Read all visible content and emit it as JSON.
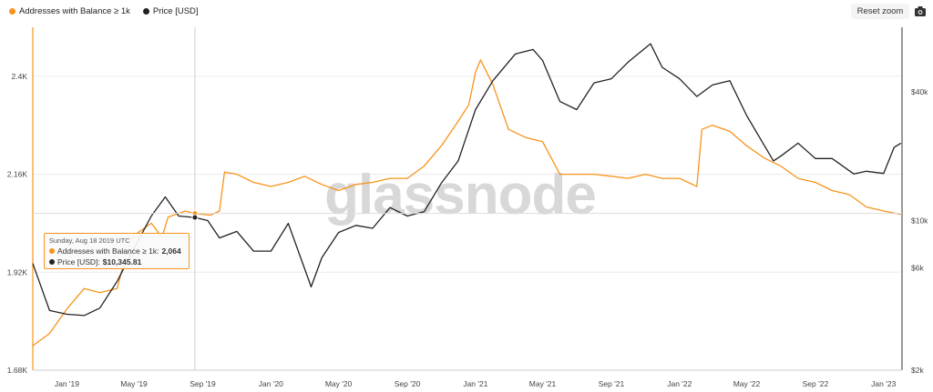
{
  "legend": {
    "series1": {
      "label": "Addresses with Balance ≥ 1k",
      "color": "#f7931a"
    },
    "series2": {
      "label": "Price [USD]",
      "color": "#222222"
    }
  },
  "toolbar": {
    "reset_zoom": "Reset zoom",
    "camera_icon": "camera-icon"
  },
  "watermark": "glassnode",
  "tooltip": {
    "date": "Sunday, Aug 18 2019 UTC",
    "series1_label": "Addresses with Balance ≥ 1k:",
    "series1_value": "2,064",
    "series2_label": "Price [USD]:",
    "series2_value": "$10,345.81"
  },
  "chart_data": {
    "type": "line",
    "x_tick_labels": [
      "Jan '19",
      "May '19",
      "Sep '19",
      "Jan '20",
      "May '20",
      "Sep '20",
      "Jan '21",
      "May '21",
      "Sep '21",
      "Jan '22",
      "May '22",
      "Sep '22",
      "Jan '23"
    ],
    "left_axis": {
      "label": "",
      "ticks": [
        "1.68K",
        "1.92K",
        "2.16K",
        "2.4K"
      ],
      "ylim": [
        1680,
        2520
      ]
    },
    "right_axis": {
      "label": "",
      "scale": "log",
      "ticks": [
        "$2k",
        "$6k",
        "$10k",
        "$40k"
      ]
    },
    "series": [
      {
        "name": "Addresses with Balance ≥ 1k",
        "axis": "left",
        "color": "#f7931a",
        "points": [
          [
            "2018-11-01",
            1740
          ],
          [
            "2018-12-01",
            1770
          ],
          [
            "2019-01-01",
            1830
          ],
          [
            "2019-02-01",
            1880
          ],
          [
            "2019-03-01",
            1870
          ],
          [
            "2019-04-01",
            1880
          ],
          [
            "2019-04-20",
            1980
          ],
          [
            "2019-05-01",
            2010
          ],
          [
            "2019-06-01",
            2040
          ],
          [
            "2019-06-20",
            2005
          ],
          [
            "2019-07-01",
            2055
          ],
          [
            "2019-08-01",
            2070
          ],
          [
            "2019-08-18",
            2064
          ],
          [
            "2019-09-15",
            2060
          ],
          [
            "2019-10-01",
            2070
          ],
          [
            "2019-10-10",
            2165
          ],
          [
            "2019-11-01",
            2160
          ],
          [
            "2019-12-01",
            2140
          ],
          [
            "2020-01-01",
            2130
          ],
          [
            "2020-02-01",
            2140
          ],
          [
            "2020-03-01",
            2155
          ],
          [
            "2020-04-01",
            2135
          ],
          [
            "2020-05-01",
            2120
          ],
          [
            "2020-06-01",
            2135
          ],
          [
            "2020-07-01",
            2140
          ],
          [
            "2020-08-01",
            2150
          ],
          [
            "2020-09-01",
            2150
          ],
          [
            "2020-10-01",
            2180
          ],
          [
            "2020-11-01",
            2230
          ],
          [
            "2020-12-01",
            2290
          ],
          [
            "2020-12-20",
            2330
          ],
          [
            "2021-01-01",
            2410
          ],
          [
            "2021-01-10",
            2440
          ],
          [
            "2021-02-01",
            2380
          ],
          [
            "2021-03-01",
            2270
          ],
          [
            "2021-04-01",
            2250
          ],
          [
            "2021-05-01",
            2240
          ],
          [
            "2021-06-01",
            2160
          ],
          [
            "2021-07-01",
            2160
          ],
          [
            "2021-08-01",
            2160
          ],
          [
            "2021-09-01",
            2155
          ],
          [
            "2021-10-01",
            2150
          ],
          [
            "2021-11-01",
            2160
          ],
          [
            "2021-12-01",
            2150
          ],
          [
            "2022-01-01",
            2150
          ],
          [
            "2022-02-01",
            2130
          ],
          [
            "2022-02-10",
            2270
          ],
          [
            "2022-03-01",
            2280
          ],
          [
            "2022-04-01",
            2265
          ],
          [
            "2022-05-01",
            2230
          ],
          [
            "2022-06-01",
            2200
          ],
          [
            "2022-07-01",
            2180
          ],
          [
            "2022-08-01",
            2150
          ],
          [
            "2022-09-01",
            2140
          ],
          [
            "2022-10-01",
            2120
          ],
          [
            "2022-11-01",
            2110
          ],
          [
            "2022-12-01",
            2080
          ],
          [
            "2023-01-01",
            2070
          ],
          [
            "2023-02-01",
            2062
          ]
        ]
      },
      {
        "name": "Price [USD]",
        "axis": "right",
        "color": "#222222",
        "points": [
          [
            "2018-11-01",
            6300
          ],
          [
            "2018-12-01",
            3800
          ],
          [
            "2019-01-01",
            3650
          ],
          [
            "2019-02-01",
            3600
          ],
          [
            "2019-03-01",
            3900
          ],
          [
            "2019-04-01",
            5200
          ],
          [
            "2019-05-01",
            7400
          ],
          [
            "2019-06-01",
            10500
          ],
          [
            "2019-06-26",
            12900
          ],
          [
            "2019-07-20",
            10500
          ],
          [
            "2019-08-18",
            10345
          ],
          [
            "2019-09-10",
            10000
          ],
          [
            "2019-10-01",
            8300
          ],
          [
            "2019-11-01",
            8900
          ],
          [
            "2019-12-01",
            7200
          ],
          [
            "2020-01-01",
            7200
          ],
          [
            "2020-02-01",
            9700
          ],
          [
            "2020-03-13",
            4900
          ],
          [
            "2020-04-01",
            6700
          ],
          [
            "2020-05-01",
            8800
          ],
          [
            "2020-06-01",
            9500
          ],
          [
            "2020-07-01",
            9200
          ],
          [
            "2020-08-01",
            11500
          ],
          [
            "2020-09-01",
            10500
          ],
          [
            "2020-10-01",
            11000
          ],
          [
            "2020-11-01",
            15000
          ],
          [
            "2020-12-01",
            19000
          ],
          [
            "2021-01-01",
            33000
          ],
          [
            "2021-02-01",
            45000
          ],
          [
            "2021-03-13",
            60000
          ],
          [
            "2021-04-14",
            63000
          ],
          [
            "2021-05-01",
            56000
          ],
          [
            "2021-06-01",
            36000
          ],
          [
            "2021-07-01",
            33000
          ],
          [
            "2021-08-01",
            44000
          ],
          [
            "2021-09-01",
            46000
          ],
          [
            "2021-10-01",
            55000
          ],
          [
            "2021-11-10",
            67000
          ],
          [
            "2021-12-01",
            52000
          ],
          [
            "2022-01-01",
            46000
          ],
          [
            "2022-02-01",
            38000
          ],
          [
            "2022-03-01",
            43000
          ],
          [
            "2022-04-01",
            45000
          ],
          [
            "2022-05-01",
            31000
          ],
          [
            "2022-06-18",
            19000
          ],
          [
            "2022-07-01",
            20000
          ],
          [
            "2022-08-01",
            23000
          ],
          [
            "2022-09-01",
            19500
          ],
          [
            "2022-10-01",
            19500
          ],
          [
            "2022-11-09",
            16500
          ],
          [
            "2022-12-01",
            17000
          ],
          [
            "2023-01-01",
            16600
          ],
          [
            "2023-01-20",
            22000
          ],
          [
            "2023-02-01",
            23000
          ]
        ]
      }
    ],
    "tooltip_date": "2019-08-18"
  }
}
